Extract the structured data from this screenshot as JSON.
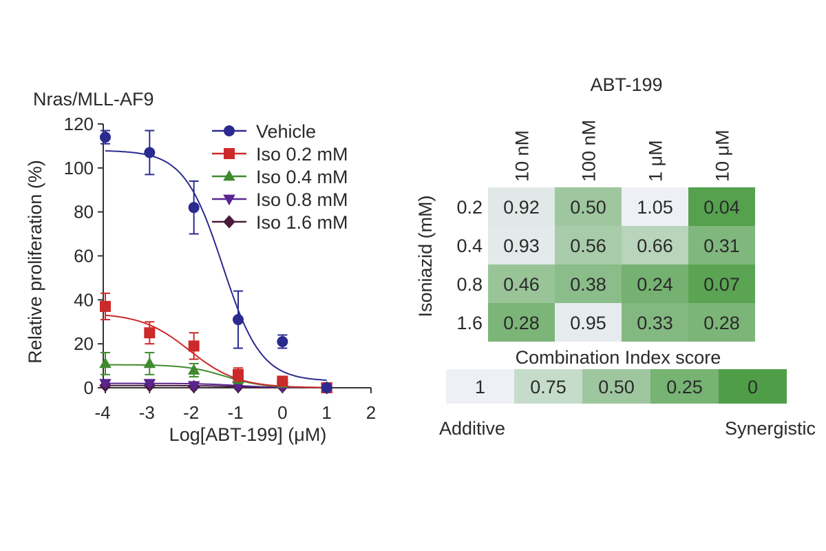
{
  "chart_data": [
    {
      "type": "line",
      "title": "Nras/MLL-AF9",
      "xlabel": "Log[ABT-199] (μM)",
      "ylabel": "Relative proliferation (%)",
      "xlim": [
        -4,
        2
      ],
      "ylim": [
        0,
        120
      ],
      "xticks": [
        -4,
        -3,
        -2,
        -1,
        0,
        1,
        2
      ],
      "yticks": [
        0,
        20,
        40,
        60,
        80,
        100,
        120
      ],
      "legend_position": "top-right",
      "series": [
        {
          "name": "Vehicle",
          "color": "#2b2a8f",
          "marker": "circle",
          "x": [
            -4,
            -3,
            -2,
            -1,
            0,
            1
          ],
          "y": [
            114,
            107,
            82,
            31,
            21,
            0
          ],
          "err": [
            3,
            10,
            12,
            13,
            3,
            1
          ],
          "fit": {
            "top": 108,
            "bottom": 3,
            "logec50": -1.35,
            "hill": 1.0
          }
        },
        {
          "name": "Iso 0.2 mM",
          "color": "#cc2a2a",
          "marker": "square",
          "x": [
            -4,
            -3,
            -2,
            -1,
            0,
            1
          ],
          "y": [
            37,
            25,
            19,
            6,
            3,
            0
          ],
          "err": [
            6,
            5,
            6,
            3,
            2,
            1
          ],
          "fit": {
            "top": 34,
            "bottom": 0,
            "logec50": -2.1,
            "hill": 0.8
          }
        },
        {
          "name": "Iso 0.4 mM",
          "color": "#3f8a2e",
          "marker": "triangle-up",
          "x": [
            -4,
            -3,
            -2,
            -1,
            0,
            1
          ],
          "y": [
            11,
            11,
            8,
            4,
            2,
            0
          ],
          "err": [
            5,
            5,
            3,
            2,
            1,
            1
          ],
          "fit": {
            "top": 10.5,
            "bottom": 0,
            "logec50": -1.3,
            "hill": 1.0
          }
        },
        {
          "name": "Iso 0.8 mM",
          "color": "#5a2590",
          "marker": "triangle-down",
          "x": [
            -4,
            -3,
            -2,
            -1,
            0,
            1
          ],
          "y": [
            2,
            2,
            1,
            1,
            0.5,
            0
          ],
          "err": [
            1,
            1,
            1,
            1,
            0.5,
            0.5
          ],
          "fit": {
            "top": 2,
            "bottom": 0,
            "logec50": -1,
            "hill": 1.0
          }
        },
        {
          "name": "Iso 1.6 mM",
          "color": "#4a1a3a",
          "marker": "diamond",
          "x": [
            -4,
            -3,
            -2,
            -1,
            0,
            1
          ],
          "y": [
            1,
            1,
            0.5,
            0.5,
            0.5,
            0
          ],
          "err": [
            0.5,
            0.5,
            0.5,
            0.5,
            0.5,
            0.5
          ],
          "fit": {
            "top": 1,
            "bottom": 0,
            "logec50": -1,
            "hill": 1.0
          }
        }
      ]
    },
    {
      "type": "heatmap",
      "title": "ABT-199",
      "xlabel": "ABT-199",
      "ylabel": "Isoniazid (mM)",
      "columns": [
        "10 nM",
        "100 nM",
        "1 μM",
        "10 μM"
      ],
      "rows": [
        "0.2",
        "0.4",
        "0.8",
        "1.6"
      ],
      "values": [
        [
          "0.92",
          "0.50",
          "1.05",
          "0.04"
        ],
        [
          "0.93",
          "0.56",
          "0.66",
          "0.31"
        ],
        [
          "0.46",
          "0.38",
          "0.24",
          "0.07"
        ],
        [
          "0.28",
          "0.95",
          "0.33",
          "0.28"
        ]
      ],
      "colorbar": {
        "title": "Combination Index score",
        "steps": [
          "1",
          "0.75",
          "0.50",
          "0.25",
          "0"
        ],
        "left_label": "Additive",
        "right_label": "Synergistic"
      },
      "colors": {
        "low": "#4f9e47",
        "high": "#eef0f6"
      }
    }
  ]
}
